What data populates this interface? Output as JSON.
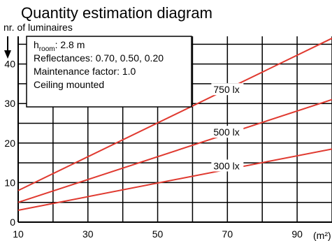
{
  "chart_data": {
    "type": "line",
    "title": "Quantity estimation diagram",
    "ylabel": "nr. of luminaires",
    "xunit": "(m²)",
    "x_ticks": [
      10,
      30,
      50,
      70,
      90
    ],
    "y_ticks": [
      0,
      10,
      20,
      30,
      40
    ],
    "xlim": [
      10,
      100
    ],
    "ylim": [
      0,
      47
    ],
    "grid": true,
    "info_box": {
      "h_symbol": "h",
      "h_subscript": "room",
      "h_value": ": 2.8 m",
      "reflectances": "Reflectances: 0.70, 0.50, 0.20",
      "maintenance": "Maintenance factor: 1.0",
      "mounting": "Ceiling mounted"
    },
    "line_color": "#e03a30",
    "series": [
      {
        "name": "750 lx",
        "x": [
          10,
          100
        ],
        "y": [
          8,
          46.5
        ]
      },
      {
        "name": "500 lx",
        "x": [
          10,
          100
        ],
        "y": [
          5,
          31
        ]
      },
      {
        "name": "300 lx",
        "x": [
          10,
          100
        ],
        "y": [
          3,
          18.5
        ]
      }
    ]
  }
}
